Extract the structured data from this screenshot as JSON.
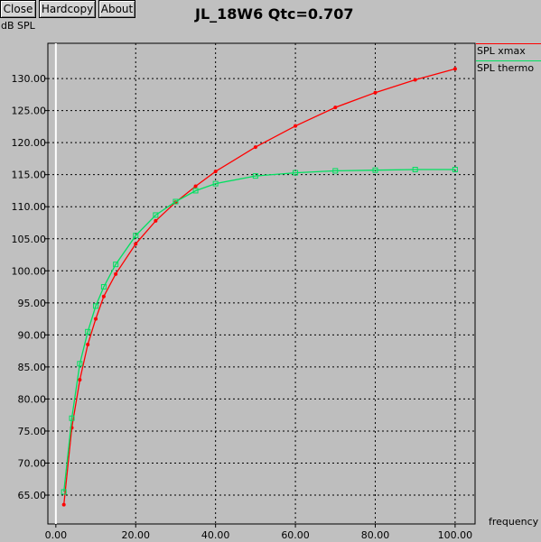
{
  "window": {
    "buttons": {
      "close": "Close",
      "hardcopy": "Hardcopy",
      "about": "About"
    }
  },
  "chart_data": {
    "type": "line",
    "title": "JL_18W6 Qtc=0.707",
    "ylabel": "dB SPL",
    "xlabel": "frequency",
    "xlim": [
      -2,
      105
    ],
    "ylim": [
      60.5,
      135.5
    ],
    "xticks": [
      "0.00",
      "20.00",
      "40.00",
      "60.00",
      "80.00",
      "100.00"
    ],
    "xtick_values": [
      0,
      20,
      40,
      60,
      80,
      100
    ],
    "yticks": [
      "65.00",
      "70.00",
      "75.00",
      "80.00",
      "85.00",
      "90.00",
      "95.00",
      "100.00",
      "105.00",
      "110.00",
      "115.00",
      "120.00",
      "125.00",
      "130.00"
    ],
    "ytick_values": [
      65,
      70,
      75,
      80,
      85,
      90,
      95,
      100,
      105,
      110,
      115,
      120,
      125,
      130
    ],
    "grid": true,
    "legend_placement": "right",
    "series": [
      {
        "name": "SPL xmax",
        "color": "#ff0000",
        "marker": "dot",
        "x": [
          2,
          4,
          6,
          8,
          10,
          12,
          15,
          20,
          25,
          30,
          35,
          40,
          50,
          60,
          70,
          80,
          90,
          100
        ],
        "y": [
          63.5,
          75.5,
          83.0,
          88.5,
          92.5,
          96.0,
          99.5,
          104.2,
          107.8,
          110.7,
          113.2,
          115.5,
          119.3,
          122.6,
          125.5,
          127.8,
          129.8,
          131.5
        ]
      },
      {
        "name": "SPL thermo",
        "color": "#00e060",
        "marker": "square",
        "x": [
          2,
          4,
          6,
          8,
          10,
          12,
          15,
          20,
          25,
          30,
          35,
          40,
          50,
          60,
          70,
          80,
          90,
          100
        ],
        "y": [
          65.5,
          77.0,
          85.5,
          90.5,
          94.5,
          97.5,
          101.0,
          105.5,
          108.7,
          110.8,
          112.5,
          113.6,
          114.8,
          115.3,
          115.6,
          115.7,
          115.8,
          115.8
        ]
      }
    ]
  }
}
